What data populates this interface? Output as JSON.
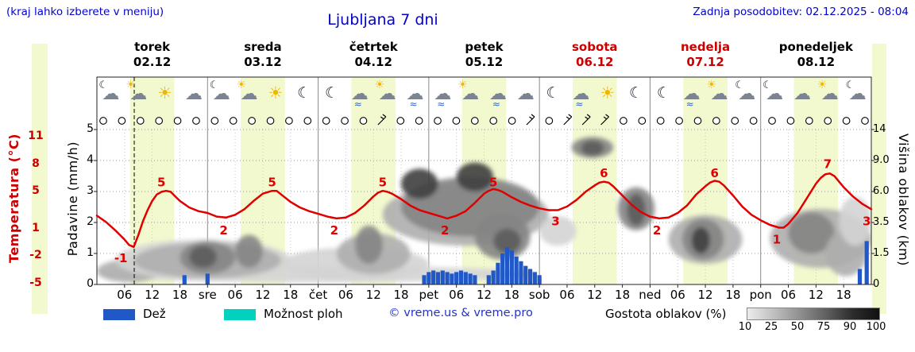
{
  "ui": {
    "top_left_note": "(kraj lahko izberete v meniju)",
    "title": "Ljubljana 7 dni",
    "last_update": "Zadnja posodobitev: 02.12.2025 - 08:04",
    "legend": {
      "rain_label": "Dež",
      "showers_label": "Možnost ploh",
      "copyright": "© vreme.us & vreme.pro",
      "cloud_density_label": "Gostota oblakov (%)",
      "density_scale_labels": [
        "10",
        "25",
        "50",
        "75",
        "90",
        "100"
      ]
    },
    "colors": {
      "link_blue": "#0202cc",
      "accent_red": "#cc0000",
      "rain_bar": "#2158c8",
      "showers": "#00d2be",
      "daylight_band": "#f3f9cf",
      "temp_line": "#e00000"
    }
  },
  "chart_data": {
    "type": "meteogram",
    "location": "Ljubljana",
    "days": [
      {
        "name": "torek",
        "date": "02.12",
        "weekend": false
      },
      {
        "name": "sreda",
        "date": "03.12",
        "weekend": false
      },
      {
        "name": "četrtek",
        "date": "04.12",
        "weekend": false
      },
      {
        "name": "petek",
        "date": "05.12",
        "weekend": false
      },
      {
        "name": "sobota",
        "date": "06.12",
        "weekend": true
      },
      {
        "name": "nedelja",
        "date": "07.12",
        "weekend": true
      },
      {
        "name": "ponedeljek",
        "date": "08.12",
        "weekend": false
      }
    ],
    "temp_axis": {
      "label": "Temperatura (°C)",
      "ticks": [
        11,
        8,
        5,
        1,
        -2,
        -5
      ]
    },
    "precip_axis": {
      "label": "Padavine (mm/h)",
      "ticks": [
        5,
        4,
        3,
        2,
        1,
        0
      ]
    },
    "cloud_axis": {
      "label": "Višina oblakov (km)",
      "ticks": [
        "14",
        "9.0",
        "6.0",
        "3.5",
        "1.5",
        "0"
      ]
    },
    "x_ticks": [
      [
        6,
        "06"
      ],
      [
        12,
        "12"
      ],
      [
        18,
        "18"
      ],
      [
        24,
        "sre"
      ],
      [
        30,
        "06"
      ],
      [
        36,
        "12"
      ],
      [
        42,
        "18"
      ],
      [
        48,
        "čet"
      ],
      [
        54,
        "06"
      ],
      [
        60,
        "12"
      ],
      [
        66,
        "18"
      ],
      [
        72,
        "pet"
      ],
      [
        78,
        "06"
      ],
      [
        84,
        "12"
      ],
      [
        90,
        "18"
      ],
      [
        96,
        "sob"
      ],
      [
        102,
        "06"
      ],
      [
        108,
        "12"
      ],
      [
        114,
        "18"
      ],
      [
        120,
        "ned"
      ],
      [
        126,
        "06"
      ],
      [
        132,
        "12"
      ],
      [
        138,
        "18"
      ],
      [
        144,
        "pon"
      ],
      [
        150,
        "06"
      ],
      [
        156,
        "12"
      ],
      [
        162,
        "18"
      ]
    ],
    "now_hour": 8.1,
    "daylight": [
      [
        7.2,
        16.8
      ],
      [
        31.2,
        40.8
      ],
      [
        55.2,
        64.8
      ],
      [
        79.2,
        88.8
      ],
      [
        103.2,
        112.8
      ],
      [
        127.2,
        136.8
      ],
      [
        151.2,
        160.8
      ]
    ],
    "temperature": [
      [
        0,
        2.4
      ],
      [
        2,
        1.7
      ],
      [
        4,
        0.8
      ],
      [
        6,
        -0.2
      ],
      [
        7,
        -0.8
      ],
      [
        8,
        -1.0
      ],
      [
        9,
        0.3
      ],
      [
        10,
        1.8
      ],
      [
        11,
        3.0
      ],
      [
        12,
        4.0
      ],
      [
        13,
        4.7
      ],
      [
        14,
        5.0
      ],
      [
        15,
        5.1
      ],
      [
        16,
        5.0
      ],
      [
        17,
        4.5
      ],
      [
        18,
        4.0
      ],
      [
        20,
        3.3
      ],
      [
        22,
        2.9
      ],
      [
        24,
        2.7
      ],
      [
        26,
        2.3
      ],
      [
        28,
        2.2
      ],
      [
        30,
        2.5
      ],
      [
        32,
        3.1
      ],
      [
        34,
        4.0
      ],
      [
        36,
        4.8
      ],
      [
        38,
        5.1
      ],
      [
        39,
        5.1
      ],
      [
        40,
        4.7
      ],
      [
        42,
        3.9
      ],
      [
        44,
        3.3
      ],
      [
        46,
        2.9
      ],
      [
        48,
        2.6
      ],
      [
        50,
        2.3
      ],
      [
        52,
        2.1
      ],
      [
        54,
        2.2
      ],
      [
        56,
        2.7
      ],
      [
        58,
        3.5
      ],
      [
        60,
        4.5
      ],
      [
        61,
        4.9
      ],
      [
        62,
        5.1
      ],
      [
        63,
        5.0
      ],
      [
        64,
        4.8
      ],
      [
        66,
        4.2
      ],
      [
        68,
        3.5
      ],
      [
        70,
        3.0
      ],
      [
        72,
        2.7
      ],
      [
        74,
        2.4
      ],
      [
        76,
        2.1
      ],
      [
        78,
        2.4
      ],
      [
        80,
        2.9
      ],
      [
        82,
        3.8
      ],
      [
        84,
        4.8
      ],
      [
        85,
        5.1
      ],
      [
        86,
        5.3
      ],
      [
        87,
        5.2
      ],
      [
        88,
        5.0
      ],
      [
        90,
        4.4
      ],
      [
        92,
        3.9
      ],
      [
        94,
        3.5
      ],
      [
        96,
        3.2
      ],
      [
        98,
        3.0
      ],
      [
        100,
        3.0
      ],
      [
        102,
        3.4
      ],
      [
        104,
        4.1
      ],
      [
        106,
        5.0
      ],
      [
        108,
        5.7
      ],
      [
        109,
        6.0
      ],
      [
        110,
        6.1
      ],
      [
        111,
        6.0
      ],
      [
        112,
        5.6
      ],
      [
        114,
        4.6
      ],
      [
        116,
        3.6
      ],
      [
        118,
        2.8
      ],
      [
        120,
        2.3
      ],
      [
        122,
        2.1
      ],
      [
        124,
        2.2
      ],
      [
        126,
        2.7
      ],
      [
        128,
        3.5
      ],
      [
        130,
        4.7
      ],
      [
        132,
        5.6
      ],
      [
        133,
        6.0
      ],
      [
        134,
        6.2
      ],
      [
        135,
        6.1
      ],
      [
        136,
        5.7
      ],
      [
        138,
        4.6
      ],
      [
        140,
        3.4
      ],
      [
        142,
        2.5
      ],
      [
        144,
        1.9
      ],
      [
        146,
        1.4
      ],
      [
        148,
        1.1
      ],
      [
        149,
        1.1
      ],
      [
        150,
        1.5
      ],
      [
        152,
        2.7
      ],
      [
        154,
        4.3
      ],
      [
        156,
        5.9
      ],
      [
        157,
        6.5
      ],
      [
        158,
        6.9
      ],
      [
        159,
        7.0
      ],
      [
        160,
        6.7
      ],
      [
        162,
        5.5
      ],
      [
        164,
        4.5
      ],
      [
        166,
        3.7
      ],
      [
        168,
        3.1
      ]
    ],
    "temp_labels": [
      [
        5.2,
        -1,
        "b"
      ],
      [
        14,
        5,
        "a"
      ],
      [
        27.5,
        2,
        "b"
      ],
      [
        38,
        5,
        "a"
      ],
      [
        51.5,
        2,
        "b"
      ],
      [
        62,
        5,
        "a"
      ],
      [
        75.5,
        2,
        "b"
      ],
      [
        86,
        5,
        "a"
      ],
      [
        99.5,
        3,
        "b"
      ],
      [
        110,
        6,
        "a"
      ],
      [
        121.5,
        2,
        "b"
      ],
      [
        134,
        6,
        "a"
      ],
      [
        147.5,
        1,
        "b"
      ],
      [
        158.5,
        7,
        "a"
      ],
      [
        167,
        3,
        "b"
      ]
    ],
    "precip_bars": [
      [
        19,
        0.3
      ],
      [
        24,
        0.35
      ],
      [
        71,
        0.3
      ],
      [
        72,
        0.4
      ],
      [
        73,
        0.45
      ],
      [
        74,
        0.4
      ],
      [
        75,
        0.45
      ],
      [
        76,
        0.4
      ],
      [
        77,
        0.35
      ],
      [
        78,
        0.4
      ],
      [
        79,
        0.45
      ],
      [
        80,
        0.4
      ],
      [
        81,
        0.35
      ],
      [
        82,
        0.3
      ],
      [
        85,
        0.3
      ],
      [
        86,
        0.45
      ],
      [
        87,
        0.7
      ],
      [
        88,
        1.0
      ],
      [
        89,
        1.2
      ],
      [
        90,
        1.1
      ],
      [
        91,
        0.9
      ],
      [
        92,
        0.75
      ],
      [
        93,
        0.6
      ],
      [
        94,
        0.5
      ],
      [
        95,
        0.4
      ],
      [
        96,
        0.3
      ],
      [
        165.5,
        0.5
      ],
      [
        167,
        1.4
      ]
    ],
    "clouds": [
      [
        0,
        96,
        0.1,
        0.9,
        25
      ],
      [
        0,
        14,
        0.1,
        1.2,
        50
      ],
      [
        4,
        42,
        0.2,
        2.4,
        25
      ],
      [
        8,
        40,
        0.3,
        2.2,
        50
      ],
      [
        18,
        30,
        0.5,
        2.3,
        75
      ],
      [
        20,
        26,
        0.8,
        2.0,
        90
      ],
      [
        30,
        36,
        0.8,
        2.7,
        75
      ],
      [
        40,
        72,
        0.2,
        1.9,
        25
      ],
      [
        52,
        68,
        0.5,
        2.8,
        50
      ],
      [
        56,
        62,
        1.0,
        3.3,
        75
      ],
      [
        62,
        98,
        2.0,
        6.8,
        50
      ],
      [
        66,
        96,
        2.6,
        7.4,
        75
      ],
      [
        66,
        74,
        5.4,
        8.2,
        100
      ],
      [
        78,
        86,
        6.0,
        8.8,
        100
      ],
      [
        82,
        94,
        1.2,
        4.2,
        75
      ],
      [
        86,
        92,
        1.5,
        3.1,
        90
      ],
      [
        96,
        104,
        2.0,
        4.0,
        25
      ],
      [
        103,
        112,
        9.4,
        12.8,
        75
      ],
      [
        105,
        110,
        9.8,
        12.2,
        90
      ],
      [
        113,
        121,
        3.0,
        6.4,
        75
      ],
      [
        115,
        119,
        3.3,
        5.8,
        90
      ],
      [
        124,
        140,
        1.0,
        4.1,
        50
      ],
      [
        127,
        136,
        1.2,
        3.8,
        75
      ],
      [
        129,
        133,
        1.5,
        3.2,
        100
      ],
      [
        146,
        168,
        0.8,
        4.6,
        50
      ],
      [
        150,
        160,
        1.5,
        4.3,
        75
      ],
      [
        158,
        167,
        0.4,
        3.0,
        50
      ],
      [
        161,
        168,
        2.0,
        5.6,
        25
      ]
    ],
    "cloud_density_colors": {
      "25": "#d4d4d4",
      "50": "#aeaeae",
      "75": "#858585",
      "90": "#5c5c5c",
      "100": "#3f3f3f"
    },
    "icons": [
      "moon-cloud",
      "sun-cloud",
      "sun",
      "cloud",
      "moon-cloud",
      "sun-cloud",
      "sun",
      "moon",
      "moon",
      "cloud-rain",
      "sun-cloud",
      "cloud-rain",
      "cloud-rain",
      "sun-cloud",
      "cloud-rain",
      "cloud",
      "moon",
      "cloud-rain",
      "sun",
      "moon",
      "moon",
      "cloud-rain",
      "sun-cloud",
      "moon-cloud",
      "moon-cloud",
      "cloud",
      "sun-cloud",
      "moon-cloud"
    ],
    "wind": {
      "count": 42,
      "barb_indices": [
        15,
        23,
        25,
        26,
        27
      ]
    }
  }
}
